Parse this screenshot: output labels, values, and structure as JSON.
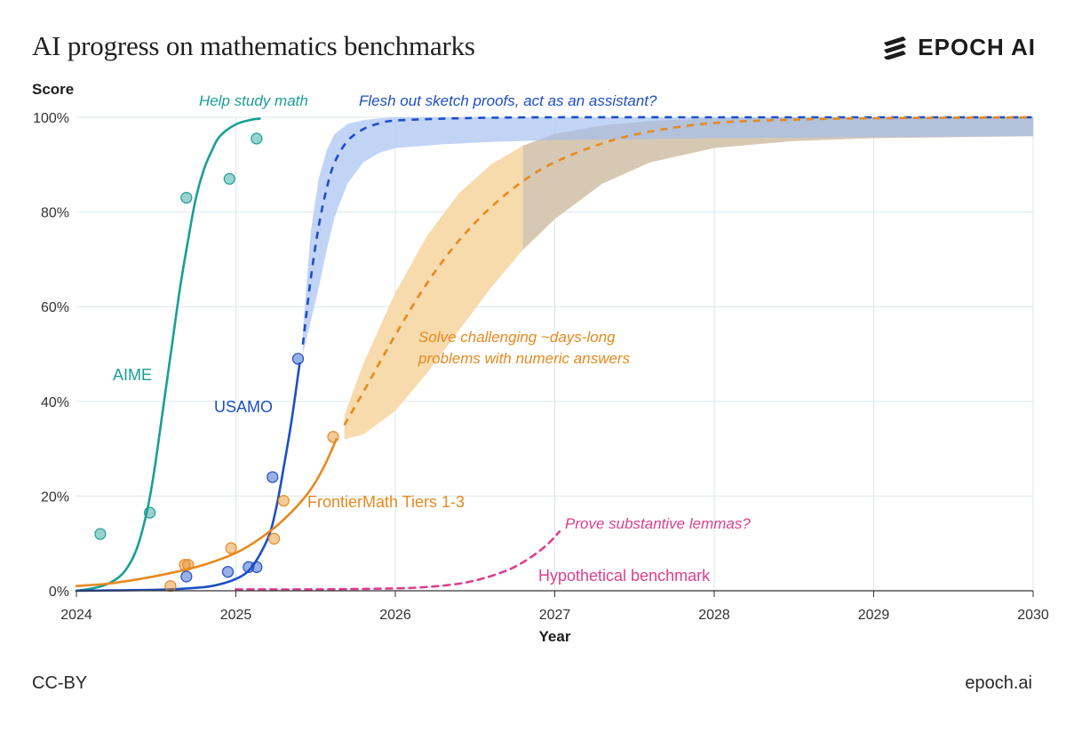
{
  "title": "AI progress on mathematics benchmarks",
  "brand": {
    "name": "EPOCH AI",
    "logo_icon": "epoch-logo-icon"
  },
  "footer": {
    "license": "CC-BY",
    "site": "epoch.ai"
  },
  "colors": {
    "aime": "#1a9e96",
    "usamo": "#1d4fc4",
    "frontiermath": "#e6891e",
    "hypothetical": "#dc3f8d",
    "usamo_band": "#b7cdf3",
    "frontiermath_band": "#f8d9a8",
    "grid": "#dde7ee"
  },
  "chart_data": {
    "type": "line",
    "xlabel": "Year",
    "ylabel": "Score",
    "xlim": [
      2024,
      2030
    ],
    "ylim": [
      0,
      100
    ],
    "x_ticks": [
      "2024",
      "2025",
      "2026",
      "2027",
      "2028",
      "2029",
      "2030"
    ],
    "y_ticks": [
      "0%",
      "20%",
      "40%",
      "60%",
      "80%",
      "100%"
    ],
    "grid": true,
    "series": [
      {
        "key": "aime",
        "name": "AIME",
        "x": [
          2024.0,
          2024.1,
          2024.2,
          2024.3,
          2024.38,
          2024.45,
          2024.5,
          2024.55,
          2024.6,
          2024.65,
          2024.7,
          2024.75,
          2024.8,
          2024.85,
          2024.9,
          2025.0,
          2025.1,
          2025.15
        ],
        "y": [
          0,
          0.5,
          1.5,
          4,
          9,
          18,
          28,
          40,
          52,
          64,
          74,
          83,
          89,
          93,
          96,
          98.5,
          99.5,
          99.7
        ],
        "points": {
          "x": [
            2024.15,
            2024.46,
            2024.69,
            2024.96,
            2025.13
          ],
          "y": [
            12,
            16.5,
            83,
            87,
            95.5
          ]
        }
      },
      {
        "key": "usamo",
        "name": "USAMO",
        "x": [
          2024.0,
          2024.5,
          2024.7,
          2024.85,
          2025.0,
          2025.1,
          2025.2,
          2025.25,
          2025.3,
          2025.35,
          2025.4
        ],
        "y": [
          0,
          0.2,
          0.5,
          1,
          2.5,
          5,
          11,
          17,
          26,
          36,
          48
        ],
        "points": {
          "x": [
            2024.69,
            2024.95,
            2025.08,
            2025.13,
            2025.23,
            2025.39
          ],
          "y": [
            3,
            4,
            5,
            5,
            24,
            49
          ]
        },
        "projection": {
          "x": [
            2025.42,
            2025.47,
            2025.52,
            2025.57,
            2025.62,
            2025.7,
            2025.8,
            2025.9,
            2026.0,
            2026.3,
            2026.6,
            2027.0,
            2028.0,
            2029.0,
            2030.0
          ],
          "y": [
            52,
            66,
            77,
            85,
            90.5,
            95,
            97.5,
            98.7,
            99.3,
            99.7,
            99.9,
            100,
            100,
            100,
            100
          ],
          "band_upper": [
            55,
            76,
            87,
            93,
            96.5,
            98.6,
            99.4,
            99.8,
            100,
            100,
            100,
            100,
            100,
            100,
            100
          ],
          "band_lower": [
            50,
            57,
            64,
            72,
            79,
            86,
            90.5,
            92.5,
            93.5,
            94.3,
            94.8,
            95.2,
            95.6,
            95.8,
            96
          ]
        }
      },
      {
        "key": "frontiermath",
        "name": "FrontierMath Tiers 1-3",
        "x": [
          2024.0,
          2024.2,
          2024.4,
          2024.6,
          2024.8,
          2025.0,
          2025.15,
          2025.3,
          2025.45,
          2025.55,
          2025.63
        ],
        "y": [
          1,
          1.5,
          2.5,
          3.8,
          5.5,
          8,
          11,
          15,
          20.5,
          26,
          32
        ],
        "points": {
          "x": [
            2024.59,
            2024.68,
            2024.7,
            2024.97,
            2025.24,
            2025.3,
            2025.61
          ],
          "y": [
            1,
            5.5,
            5.5,
            9,
            11,
            19,
            32.5
          ]
        },
        "projection": {
          "x": [
            2025.68,
            2025.8,
            2026.0,
            2026.2,
            2026.4,
            2026.6,
            2026.8,
            2027.0,
            2027.3,
            2027.6,
            2028.0,
            2028.5,
            2029.0,
            2030.0
          ],
          "y": [
            35,
            42,
            54,
            65,
            74,
            81,
            86.5,
            90.5,
            94.5,
            97,
            98.8,
            99.5,
            99.8,
            100
          ],
          "band_upper": [
            37,
            48,
            63,
            75,
            84,
            90,
            94,
            96.5,
            98.3,
            99.2,
            99.8,
            100,
            100,
            100
          ],
          "band_lower": [
            32,
            33,
            38,
            46,
            55,
            64,
            72,
            78.5,
            86,
            90.5,
            93.5,
            95,
            95.6,
            96
          ]
        }
      },
      {
        "key": "hypothetical",
        "name": "Hypothetical benchmark",
        "x": [
          2025.0,
          2025.5,
          2026.0,
          2026.2,
          2026.4,
          2026.55,
          2026.7,
          2026.8,
          2026.9,
          2026.97,
          2027.03
        ],
        "y": [
          0.3,
          0.3,
          0.5,
          0.8,
          1.5,
          2.6,
          4.3,
          6,
          8.3,
          10.3,
          12.5
        ],
        "dashed": true
      }
    ],
    "annotations": [
      {
        "key": "aime_help",
        "text": "Help study math",
        "color_key": "aime"
      },
      {
        "key": "usamo_flesh",
        "text": "Flesh out sketch proofs, act as an assistant?",
        "color_key": "usamo"
      },
      {
        "key": "fm_solve_1",
        "text": "Solve challenging ~days-long",
        "color_key": "frontiermath"
      },
      {
        "key": "fm_solve_2",
        "text": "problems with numeric answers",
        "color_key": "frontiermath"
      },
      {
        "key": "hyp_prove",
        "text": "Prove substantive lemmas?",
        "color_key": "hypothetical"
      }
    ]
  }
}
